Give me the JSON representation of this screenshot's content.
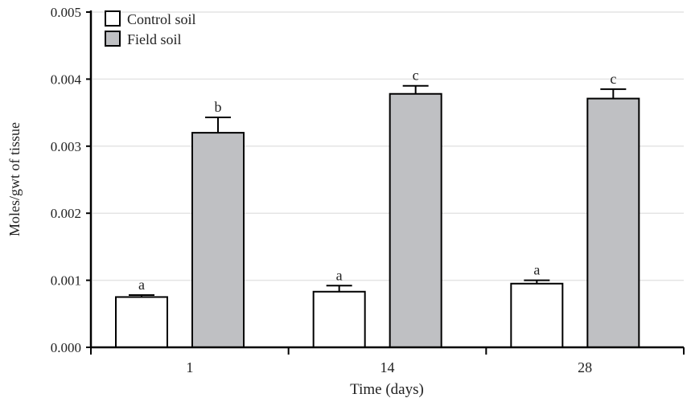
{
  "chart_data": {
    "type": "bar",
    "title": "",
    "xlabel": "Time (days)",
    "ylabel": "Moles/gwt of tissue",
    "categories": [
      "1",
      "14",
      "28"
    ],
    "ylim": [
      0,
      0.005
    ],
    "yticks": [
      "0.000",
      "0.001",
      "0.002",
      "0.003",
      "0.004",
      "0.005"
    ],
    "grid": true,
    "legend_position": "top-left",
    "series": [
      {
        "name": "Control soil",
        "color": "#ffffff",
        "values": [
          0.00075,
          0.00083,
          0.00095
        ],
        "errors": [
          3e-05,
          9e-05,
          5e-05
        ],
        "labels": [
          "a",
          "a",
          "a"
        ]
      },
      {
        "name": "Field soil",
        "color": "#bfc0c3",
        "values": [
          0.0032,
          0.00378,
          0.00371
        ],
        "errors": [
          0.00023,
          0.00012,
          0.00014
        ],
        "labels": [
          "b",
          "c",
          "c"
        ]
      }
    ]
  }
}
